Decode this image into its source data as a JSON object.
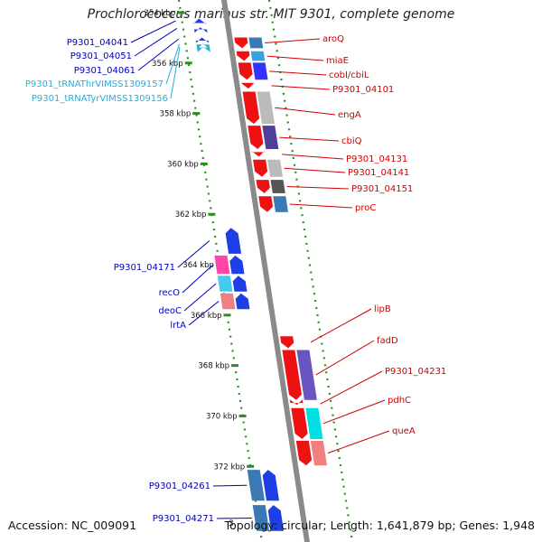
{
  "title": "Prochlorococcus marinus str. MIT 9301, complete genome",
  "accession": "Accession: NC_009091",
  "footer": "Topology: circular; Length: 1,641,879 bp; Genes: 1,948",
  "cut_off_tick": "3",
  "colors": {
    "backbone": "#8a8a8a",
    "scale_ticks": "#2e8b22",
    "forward_label": "#d00000",
    "reverse_label": "#0000b8",
    "trna_label": "#22b0e0"
  },
  "scale_ticks": [
    {
      "kbp": 354,
      "label": "354 kbp"
    },
    {
      "kbp": 356,
      "label": "356 kbp"
    },
    {
      "kbp": 358,
      "label": "358 kbp"
    },
    {
      "kbp": 360,
      "label": "360 kbp"
    },
    {
      "kbp": 362,
      "label": "362 kbp"
    },
    {
      "kbp": 364,
      "label": "364 kbp"
    },
    {
      "kbp": 366,
      "label": "366 kbp"
    },
    {
      "kbp": 368,
      "label": "368 kbp"
    },
    {
      "kbp": 370,
      "label": "370 kbp"
    },
    {
      "kbp": 372,
      "label": "372 kbp"
    }
  ],
  "forward_genes": [
    {
      "label": "aroQ",
      "start_kbp": 354.95,
      "end_kbp": 355.45,
      "cog_color": "#3a78b6"
    },
    {
      "label": "miaE",
      "start_kbp": 355.5,
      "end_kbp": 355.95,
      "cog_color": "#3aa0e0"
    },
    {
      "label": "cobI/cbiL",
      "start_kbp": 355.95,
      "end_kbp": 356.7,
      "cog_color": "#3333ff"
    },
    {
      "label": "P9301_04101",
      "start_kbp": 356.75,
      "end_kbp": 357.05,
      "cog_color": null
    },
    {
      "label": "engA",
      "start_kbp": 357.1,
      "end_kbp": 358.45,
      "cog_color": "#bbbbbb"
    },
    {
      "label": "cbiQ",
      "start_kbp": 358.45,
      "end_kbp": 359.45,
      "cog_color": "#4f3f99"
    },
    {
      "label": "P9301_04131",
      "start_kbp": 359.5,
      "end_kbp": 359.75,
      "cog_color": null
    },
    {
      "label": "P9301_04141",
      "start_kbp": 359.8,
      "end_kbp": 360.55,
      "cog_color": "#bbbbbb"
    },
    {
      "label": "P9301_04151",
      "start_kbp": 360.6,
      "end_kbp": 361.2,
      "cog_color": "#555555"
    },
    {
      "label": "proC",
      "start_kbp": 361.25,
      "end_kbp": 361.95,
      "cog_color": "#3a78b6"
    },
    {
      "label": "lipB",
      "start_kbp": 366.8,
      "end_kbp": 367.35,
      "cog_color": null
    },
    {
      "label": "fadD",
      "start_kbp": 367.35,
      "end_kbp": 369.4,
      "cog_color": "#6a54c0"
    },
    {
      "label": "P9301_04231",
      "start_kbp": 369.45,
      "end_kbp": 369.6,
      "cog_color": null
    },
    {
      "label": "pdhC",
      "start_kbp": 369.65,
      "end_kbp": 370.95,
      "cog_color": "#00e0e0"
    },
    {
      "label": "queA",
      "start_kbp": 370.95,
      "end_kbp": 372.0,
      "cog_color": "#f08080"
    }
  ],
  "reverse_genes": [
    {
      "label": "P9301_04041",
      "start_kbp": 354.2,
      "end_kbp": 354.45,
      "cog_color": null
    },
    {
      "label": "P9301_04051",
      "start_kbp": 354.55,
      "end_kbp": 354.7,
      "cog_color": null
    },
    {
      "label": "P9301_04061",
      "start_kbp": 354.95,
      "end_kbp": 355.15,
      "cog_color": null
    },
    {
      "label": "P9301_tRNAThrVIMSS1309157",
      "start_kbp": 355.2,
      "end_kbp": 355.3,
      "cog_color": null,
      "type": "trna"
    },
    {
      "label": "P9301_tRNATyrVIMSS1309156",
      "start_kbp": 355.32,
      "end_kbp": 355.42,
      "cog_color": null,
      "type": "trna"
    },
    {
      "label": "P9301_04171",
      "start_kbp": 362.5,
      "end_kbp": 363.6,
      "cog_color": null
    },
    {
      "label": "recO",
      "start_kbp": 363.6,
      "end_kbp": 364.4,
      "cog_color": "#ff44aa"
    },
    {
      "label": "deoC",
      "start_kbp": 364.4,
      "end_kbp": 365.1,
      "cog_color": "#44ccee"
    },
    {
      "label": "lrtA",
      "start_kbp": 365.1,
      "end_kbp": 365.8,
      "cog_color": "#f08080"
    },
    {
      "label": "P9301_04261",
      "start_kbp": 372.1,
      "end_kbp": 373.4,
      "cog_color": "#3a78b6"
    },
    {
      "label": "P9301_04271",
      "start_kbp": 373.5,
      "end_kbp": 374.6,
      "cog_color": "#3a78b6"
    }
  ]
}
